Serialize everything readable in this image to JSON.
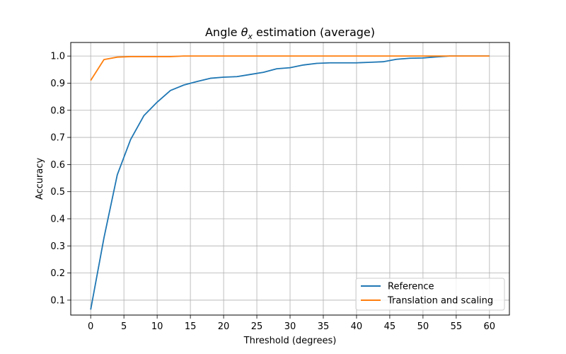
{
  "chart_data": {
    "type": "line",
    "title": {
      "prefix": "Angle ",
      "symbol": "θ",
      "subscript": "x",
      "suffix": " estimation (average)"
    },
    "xlabel": "Threshold (degrees)",
    "ylabel": "Accuracy",
    "xlim": [
      -3,
      63
    ],
    "ylim": [
      0.045,
      1.05
    ],
    "xticks": [
      0,
      5,
      10,
      15,
      20,
      25,
      30,
      35,
      40,
      45,
      50,
      55,
      60
    ],
    "yticks": [
      0.1,
      0.2,
      0.3,
      0.4,
      0.5,
      0.6,
      0.7,
      0.8,
      0.9,
      1.0
    ],
    "ytick_labels": [
      "0.1",
      "0.2",
      "0.3",
      "0.4",
      "0.5",
      "0.6",
      "0.7",
      "0.8",
      "0.9",
      "1.0"
    ],
    "grid": true,
    "legend_position": "bottom-right",
    "x": [
      0,
      2,
      4,
      6,
      8,
      10,
      12,
      14,
      16,
      18,
      20,
      22,
      24,
      26,
      28,
      30,
      32,
      34,
      36,
      38,
      40,
      42,
      44,
      46,
      48,
      50,
      52,
      54,
      56,
      58,
      60
    ],
    "series": [
      {
        "name": "Reference",
        "color": "#1f77b4",
        "values": [
          0.065,
          0.33,
          0.562,
          0.692,
          0.78,
          0.83,
          0.873,
          0.893,
          0.906,
          0.918,
          0.922,
          0.924,
          0.932,
          0.94,
          0.953,
          0.957,
          0.967,
          0.973,
          0.975,
          0.975,
          0.975,
          0.977,
          0.979,
          0.988,
          0.992,
          0.993,
          0.997,
          1.0,
          1.0,
          1.0,
          1.0
        ]
      },
      {
        "name": "Translation and scaling",
        "color": "#ff7f0e",
        "values": [
          0.91,
          0.987,
          0.996,
          0.998,
          0.998,
          0.998,
          0.998,
          1.0,
          1.0,
          1.0,
          1.0,
          1.0,
          1.0,
          1.0,
          1.0,
          1.0,
          1.0,
          1.0,
          1.0,
          1.0,
          1.0,
          1.0,
          1.0,
          1.0,
          1.0,
          1.0,
          1.0,
          1.0,
          1.0,
          1.0,
          1.0
        ]
      }
    ]
  }
}
